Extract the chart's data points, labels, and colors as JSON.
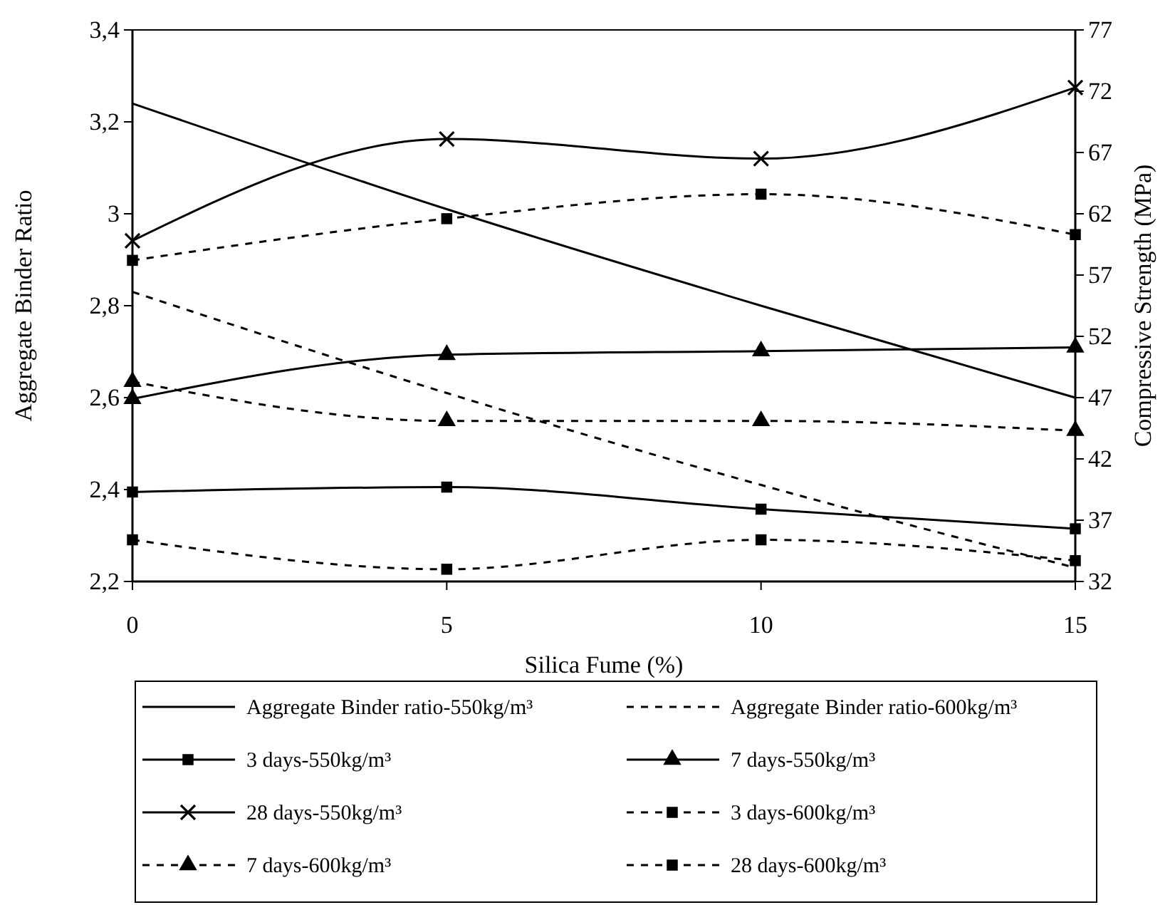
{
  "chart_data": {
    "type": "line",
    "xlabel": "Silica Fume (%)",
    "ylabel": "Aggregate Binder Ratio",
    "y2label": "Compressive Strength (MPa)",
    "x": [
      0,
      5,
      10,
      15
    ],
    "xlim": [
      0,
      15
    ],
    "xticks": [
      0,
      5,
      10,
      15
    ],
    "ylim": [
      2.2,
      3.4
    ],
    "yticks": [
      {
        "value": 2.2,
        "label": "2,2"
      },
      {
        "value": 2.4,
        "label": "2,4"
      },
      {
        "value": 2.6,
        "label": "2,6"
      },
      {
        "value": 2.8,
        "label": "2,8"
      },
      3,
      {
        "value": 3.2,
        "label": "3,2"
      },
      {
        "value": 3.4,
        "label": "3,4"
      }
    ],
    "y2lim": [
      32,
      77
    ],
    "y2ticks": [
      32,
      37,
      42,
      47,
      52,
      57,
      62,
      67,
      72,
      77
    ],
    "grid": false,
    "legend": "bottom",
    "series": [
      {
        "name": "Aggregate Binder ratio-550kg/m³",
        "color": "#000000",
        "values": [
          3.24,
          3.01,
          2.8,
          2.6
        ],
        "marker": "none",
        "line_style": "solid"
      },
      {
        "name": "Aggregate Binder ratio-600kg/m³",
        "color": "#000000",
        "values": [
          2.83,
          2.61,
          2.41,
          2.23
        ],
        "marker": "none",
        "line_style": "dashed"
      },
      {
        "name": "3 days-550kg/m³",
        "color": "#000000",
        "axis": "y2",
        "values": [
          39.3,
          39.7,
          37.9,
          36.3
        ],
        "marker": "square",
        "line_style": "solid"
      },
      {
        "name": "7 days-550kg/m³",
        "color": "#000000",
        "axis": "y2",
        "values": [
          46.9,
          50.5,
          50.8,
          51.1
        ],
        "marker": "triangle",
        "line_style": "solid"
      },
      {
        "name": "28 days-550kg/m³",
        "color": "#000000",
        "axis": "y2",
        "values": [
          59.8,
          68.1,
          66.5,
          72.3
        ],
        "marker": "cross",
        "line_style": "solid"
      },
      {
        "name": "3 days-600kg/m³",
        "color": "#000000",
        "axis": "y2",
        "values": [
          35.4,
          33,
          35.4,
          33.7
        ],
        "marker": "square",
        "line_style": "dashed"
      },
      {
        "name": "7 days-600kg/m³",
        "color": "#000000",
        "axis": "y2",
        "values": [
          48.3,
          45.1,
          45.1,
          44.3
        ],
        "marker": "triangle",
        "line_style": "dashed"
      },
      {
        "name": "28 days-600kg/m³",
        "color": "#000000",
        "axis": "y2",
        "values": [
          58.2,
          61.6,
          63.6,
          60.3
        ],
        "marker": "square",
        "line_style": "dashed"
      }
    ]
  }
}
